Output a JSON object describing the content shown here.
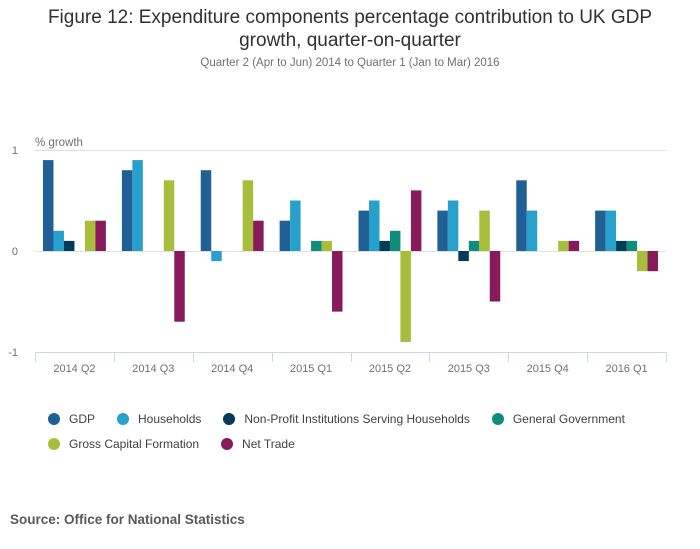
{
  "chart_data": {
    "type": "bar",
    "title": "Figure 12: Expenditure components percentage contribution to UK GDP growth, quarter-on-quarter",
    "title_lines": [
      "Figure 12: Expenditure components percentage contribution to UK GDP",
      "growth, quarter-on-quarter"
    ],
    "subtitle": "Quarter 2 (Apr to Jun) 2014 to Quarter 1 (Jan to Mar) 2016",
    "xlabel": "",
    "ylabel": "% growth",
    "ylim": [
      -1,
      1
    ],
    "yticks": [
      1,
      0,
      -1
    ],
    "grid": true,
    "legend_position": "bottom",
    "categories": [
      "2014 Q2",
      "2014 Q3",
      "2014 Q4",
      "2015 Q1",
      "2015 Q2",
      "2015 Q3",
      "2015 Q4",
      "2016 Q1"
    ],
    "series": [
      {
        "name": "GDP",
        "color": "#206095",
        "values": [
          0.9,
          0.8,
          0.8,
          0.3,
          0.4,
          0.4,
          0.7,
          0.4
        ]
      },
      {
        "name": "Households",
        "color": "#27a0cc",
        "values": [
          0.2,
          0.9,
          -0.1,
          0.5,
          0.5,
          0.5,
          0.4,
          0.4
        ]
      },
      {
        "name": "Non-Profit Institutions Serving Households",
        "color": "#003c57",
        "values": [
          0.1,
          0,
          0,
          0,
          0.1,
          -0.1,
          0,
          0.1
        ]
      },
      {
        "name": "General Government",
        "color": "#118c7b",
        "values": [
          0,
          0,
          0,
          0.1,
          0.2,
          0.1,
          0,
          0.1
        ]
      },
      {
        "name": "Gross Capital Formation",
        "color": "#a8bd3a",
        "values": [
          0.3,
          0.7,
          0.7,
          0.1,
          -0.9,
          0.4,
          0.1,
          -0.2
        ]
      },
      {
        "name": "Net Trade",
        "color": "#871a5b",
        "values": [
          0.3,
          -0.7,
          0.3,
          -0.6,
          0.6,
          -0.5,
          0.1,
          -0.2
        ]
      }
    ]
  },
  "source": "Source: Office for National Statistics"
}
